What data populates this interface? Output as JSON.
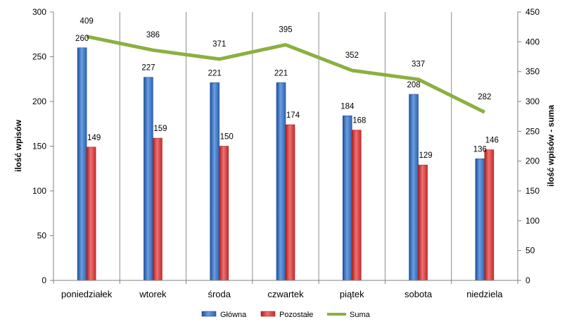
{
  "chart_data": {
    "type": "bar",
    "categories": [
      "poniedziałek",
      "wtorek",
      "środa",
      "czwartek",
      "piątek",
      "sobota",
      "niedziela"
    ],
    "series": [
      {
        "name": "Główna",
        "type": "bar",
        "axis": "left",
        "color": "#3a72c4",
        "values": [
          260,
          227,
          221,
          221,
          184,
          208,
          136
        ]
      },
      {
        "name": "Pozostałe",
        "type": "bar",
        "axis": "left",
        "color": "#d23c3c",
        "values": [
          149,
          159,
          150,
          174,
          168,
          129,
          146
        ]
      },
      {
        "name": "Suma",
        "type": "line",
        "axis": "right",
        "color": "#8cb040",
        "values": [
          409,
          386,
          371,
          395,
          352,
          337,
          282
        ]
      }
    ],
    "ylabel": "ilość wpisów",
    "y2label": "ilość wpisów - suma",
    "ylim": [
      0,
      300
    ],
    "y2lim": [
      0,
      450
    ],
    "yticks": [
      0,
      50,
      100,
      150,
      200,
      250,
      300
    ],
    "y2ticks": [
      0,
      50,
      100,
      150,
      200,
      250,
      300,
      350,
      400,
      450
    ],
    "grid": "vertical",
    "legend": "bottom"
  }
}
